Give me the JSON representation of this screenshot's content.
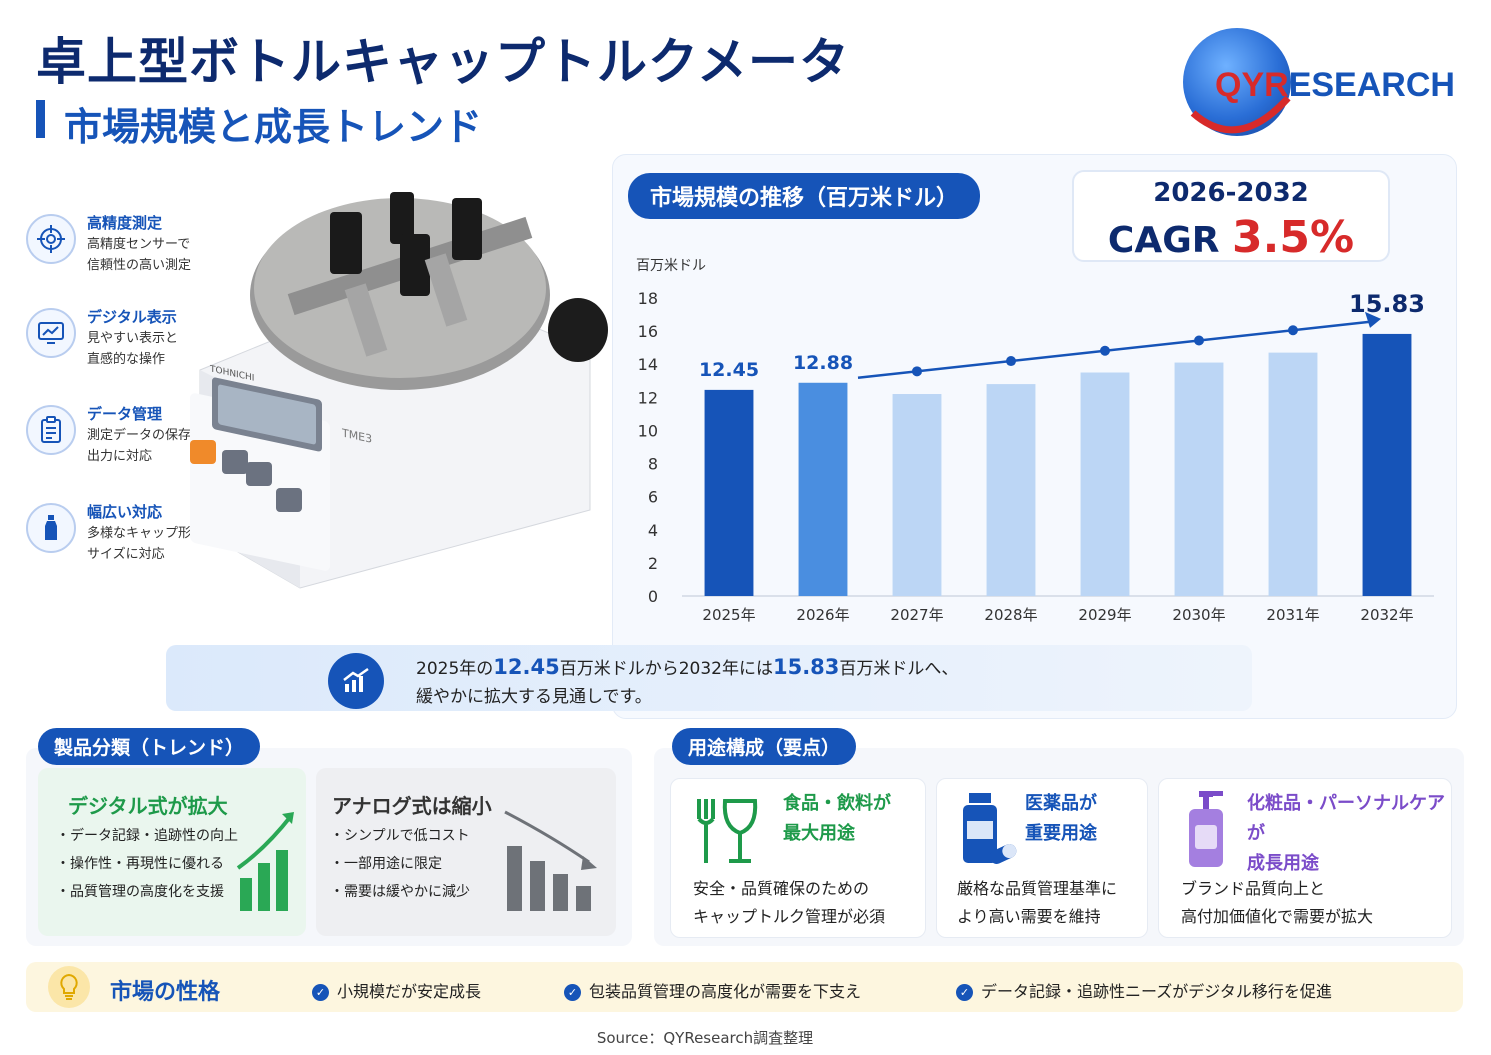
{
  "header": {
    "title": "卓上型ボトルキャップトルクメータ",
    "subtitle": "市場規模と成長トレンド"
  },
  "logo": {
    "text_prefix": "QYR",
    "text_suffix": "ESEARCH"
  },
  "features": [
    {
      "icon": "target-icon",
      "title": "高精度測定",
      "desc1": "高精度センサーで",
      "desc2": "信頼性の高い測定"
    },
    {
      "icon": "monitor-chart-icon",
      "title": "デジタル表示",
      "desc1": "見やすい表示と",
      "desc2": "直感的な操作"
    },
    {
      "icon": "clipboard-icon",
      "title": "データ管理",
      "desc1": "測定データの保存・",
      "desc2": "出力に対応"
    },
    {
      "icon": "bottle-icon",
      "title": "幅広い対応",
      "desc1": "多様なキャップ形状・",
      "desc2": "サイズに対応"
    }
  ],
  "device": {
    "brand": "TOHNICHI",
    "model": "TME3"
  },
  "chart_header": {
    "pill": "市場規模の推移（百万米ドル）",
    "cagr_period": "2026-2032",
    "cagr_label": "CAGR",
    "cagr_value": "3.5%"
  },
  "chart_data": {
    "type": "bar",
    "ylabel": "百万米ドル",
    "ylim": [
      0,
      18
    ],
    "yticks": [
      "0",
      "2",
      "4",
      "6",
      "8",
      "10",
      "12",
      "14",
      "16",
      "18"
    ],
    "categories": [
      "2025年",
      "2026年",
      "2027年",
      "2028年",
      "2029年",
      "2030年",
      "2031年",
      "2032年"
    ],
    "values": [
      12.45,
      12.88,
      12.2,
      12.8,
      13.5,
      14.1,
      14.7,
      15.83
    ],
    "data_labels": [
      "12.45",
      "12.88",
      "",
      "",
      "",
      "",
      "",
      "15.83"
    ],
    "bar_colors": [
      "#1654b8",
      "#4a8ee0",
      "#bcd6f5",
      "#bcd6f5",
      "#bcd6f5",
      "#bcd6f5",
      "#bcd6f5",
      "#1654b8"
    ],
    "trend": {
      "from": "2026年",
      "to": "2032年",
      "color": "#1654b8"
    },
    "grid": true
  },
  "summary": {
    "part1": "2025年の",
    "v1": "12.45",
    "part2": "百万米ドルから2032年には",
    "v2": "15.83",
    "part3": "百万米ドルへ、",
    "line2": "緩やかに拡大する見通しです。"
  },
  "product": {
    "pill": "製品分類（トレンド）",
    "digital": {
      "title": "デジタル式が拡大",
      "items": [
        "・データ記録・追跡性の向上",
        "・操作性・再現性に優れる",
        "・品質管理の高度化を支援"
      ]
    },
    "analog": {
      "title": "アナログ式は縮小",
      "items": [
        "・シンプルで低コスト",
        "・一部用途に限定",
        "・需要は緩やかに減少"
      ]
    }
  },
  "usage": {
    "pill": "用途構成（要点）",
    "cards": [
      {
        "title1": "食品・飲料が",
        "title2": "最大用途",
        "desc1": "安全・品質確保のための",
        "desc2": "キャップトルク管理が必須",
        "color": "#1e9a4a"
      },
      {
        "title1": "医薬品が",
        "title2": "重要用途",
        "desc1": "厳格な品質管理基準に",
        "desc2": "より高い需要を維持",
        "color": "#1654b8"
      },
      {
        "title1": "化粧品・パーソナルケアが",
        "title2": "成長用途",
        "desc1": "ブランド品質向上と",
        "desc2": "高付加価値化で需要が拡大",
        "color": "#7b4cc9"
      }
    ]
  },
  "nature": {
    "title": "市場の性格",
    "points": [
      "小規模だが安定成長",
      "包装品質管理の高度化が需要を下支え",
      "データ記録・追跡性ニーズがデジタル移行を促進"
    ]
  },
  "source": "Source：QYResearch調査整理"
}
